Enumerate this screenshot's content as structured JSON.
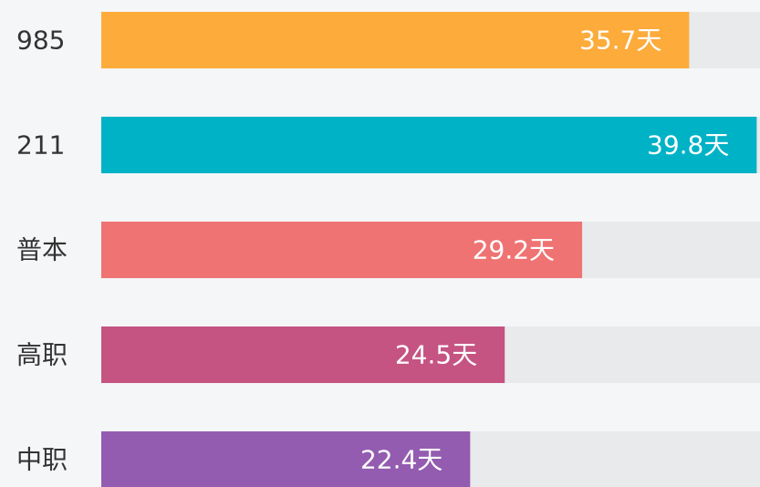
{
  "chart_data": {
    "type": "hbar",
    "categories": [
      "985",
      "211",
      "普本",
      "高职",
      "中职"
    ],
    "values": [
      35.7,
      39.8,
      29.2,
      24.5,
      22.4
    ],
    "value_labels": [
      "35.7天",
      "39.8天",
      "29.2天",
      "24.5天",
      "22.4天"
    ],
    "colors": [
      "#fdab3b",
      "#00b2c6",
      "#ef7373",
      "#c55483",
      "#945cb0"
    ],
    "xlim": [
      0,
      40
    ]
  }
}
